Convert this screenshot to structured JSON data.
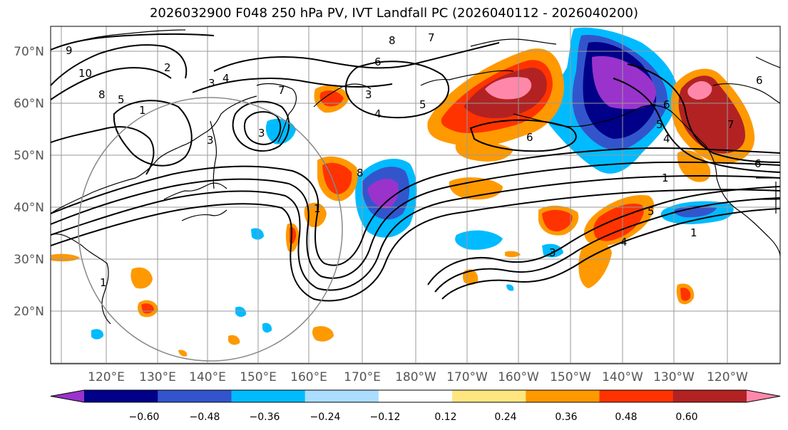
{
  "title": "2026032900 F048 250 hPa PV, IVT Landfall PC (2026040112 - 2026040200)",
  "lat_labels": [
    "70°N",
    "60°N",
    "50°N",
    "40°N",
    "30°N",
    "20°N"
  ],
  "lon_labels": [
    "120°E",
    "130°E",
    "140°E",
    "150°E",
    "160°E",
    "170°E",
    "180°W",
    "170°W",
    "160°W",
    "150°W",
    "140°W",
    "130°W",
    "120°W"
  ],
  "colorbar": {
    "colors": [
      "#9933cc",
      "#000088",
      "#3355cc",
      "#00bbff",
      "#aaddff",
      "#ffffff",
      "#ffe680",
      "#ff9900",
      "#ff3300",
      "#b22222",
      "#ff88aa"
    ],
    "labels": [
      "−0.60",
      "−0.48",
      "−0.36",
      "−0.24",
      "−0.12",
      "0.12",
      "0.24",
      "0.36",
      "0.48",
      "0.60"
    ]
  },
  "contour_labels": [
    "9",
    "10",
    "8",
    "2",
    "1",
    "3",
    "4",
    "7",
    "6",
    "8",
    "7",
    "5",
    "3",
    "4",
    "5",
    "3",
    "3",
    "6",
    "8",
    "5",
    "6",
    "4",
    "3",
    "1",
    "7",
    "6",
    "6",
    "5",
    "4",
    "1",
    "1",
    "1"
  ]
}
